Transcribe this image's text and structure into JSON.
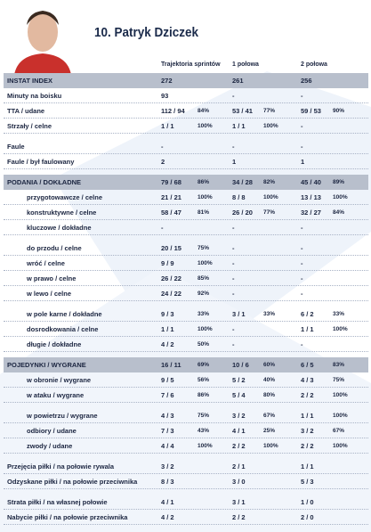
{
  "header": {
    "title": "10. Patryk Dziczek",
    "columns": [
      "Trajektoria sprintów",
      "1 połowa",
      "2 połowa"
    ]
  },
  "groups": [
    {
      "heading": {
        "label": "INSTAT INDEX",
        "cells": [
          [
            "272"
          ],
          [
            "261"
          ],
          [
            "256"
          ]
        ]
      },
      "rows": [
        {
          "label": "Minuty na boisku",
          "cells": [
            [
              "93"
            ],
            [
              "-"
            ],
            [
              "-"
            ]
          ]
        },
        {
          "label": "TTA / udane",
          "cells": [
            [
              "112 / 94",
              "84%"
            ],
            [
              "53 / 41",
              "77%"
            ],
            [
              "59 / 53",
              "90%"
            ]
          ]
        },
        {
          "label": "Strzały / celne",
          "cells": [
            [
              "1 / 1",
              "100%"
            ],
            [
              "1 / 1",
              "100%"
            ],
            [
              "-"
            ]
          ]
        }
      ]
    },
    {
      "rows": [
        {
          "label": "Faule",
          "cells": [
            [
              "-"
            ],
            [
              "-"
            ],
            [
              "-"
            ]
          ]
        },
        {
          "label": "Faule / był faulowany",
          "cells": [
            [
              "2"
            ],
            [
              "1"
            ],
            [
              "1"
            ]
          ]
        }
      ]
    },
    {
      "heading": {
        "label": "PODANIA / DOKŁADNE",
        "cells": [
          [
            "79 / 68",
            "86%"
          ],
          [
            "34 / 28",
            "82%"
          ],
          [
            "45 / 40",
            "89%"
          ]
        ]
      },
      "rows": [
        {
          "label": "przygotowawcze / celne",
          "cells": [
            [
              "21 / 21",
              "100%"
            ],
            [
              "8 / 8",
              "100%"
            ],
            [
              "13 / 13",
              "100%"
            ]
          ]
        },
        {
          "label": "konstruktywne / celne",
          "cells": [
            [
              "58 / 47",
              "81%"
            ],
            [
              "26 / 20",
              "77%"
            ],
            [
              "32 / 27",
              "84%"
            ]
          ]
        },
        {
          "label": "kluczowe / dokładne",
          "cells": [
            [
              "-"
            ],
            [
              "-"
            ],
            [
              "-"
            ]
          ]
        }
      ]
    },
    {
      "rows": [
        {
          "label": "do przodu / celne",
          "cells": [
            [
              "20 / 15",
              "75%"
            ],
            [
              "-"
            ],
            [
              "-"
            ]
          ]
        },
        {
          "label": "wróć / celne",
          "cells": [
            [
              "9 / 9",
              "100%"
            ],
            [
              "-"
            ],
            [
              "-"
            ]
          ]
        },
        {
          "label": "w prawo / celne",
          "cells": [
            [
              "26 / 22",
              "85%"
            ],
            [
              "-"
            ],
            [
              "-"
            ]
          ]
        },
        {
          "label": "w lewo / celne",
          "cells": [
            [
              "24 / 22",
              "92%"
            ],
            [
              "-"
            ],
            [
              "-"
            ]
          ]
        }
      ]
    },
    {
      "rows": [
        {
          "label": "w pole karne / dokładne",
          "cells": [
            [
              "9 / 3",
              "33%"
            ],
            [
              "3 / 1",
              "33%"
            ],
            [
              "6 / 2",
              "33%"
            ]
          ]
        },
        {
          "label": "dosrodkowania / celne",
          "cells": [
            [
              "1 / 1",
              "100%"
            ],
            [
              "-"
            ],
            [
              "1 / 1",
              "100%"
            ]
          ]
        },
        {
          "label": "długie / dokładne",
          "cells": [
            [
              "4 / 2",
              "50%"
            ],
            [
              "-"
            ],
            [
              "-"
            ]
          ]
        }
      ]
    },
    {
      "heading": {
        "label": "POJEDYNKI / WYGRANE",
        "cells": [
          [
            "16 / 11",
            "69%"
          ],
          [
            "10 / 6",
            "60%"
          ],
          [
            "6 / 5",
            "83%"
          ]
        ]
      },
      "rows": [
        {
          "label": "w obronie / wygrane",
          "cells": [
            [
              "9 / 5",
              "56%"
            ],
            [
              "5 / 2",
              "40%"
            ],
            [
              "4 / 3",
              "75%"
            ]
          ]
        },
        {
          "label": "w ataku / wygrane",
          "cells": [
            [
              "7 / 6",
              "86%"
            ],
            [
              "5 / 4",
              "80%"
            ],
            [
              "2 / 2",
              "100%"
            ]
          ]
        }
      ]
    },
    {
      "rows": [
        {
          "label": "w powietrzu / wygrane",
          "cells": [
            [
              "4 / 3",
              "75%"
            ],
            [
              "3 / 2",
              "67%"
            ],
            [
              "1 / 1",
              "100%"
            ]
          ]
        },
        {
          "label": "odbiory / udane",
          "cells": [
            [
              "7 / 3",
              "43%"
            ],
            [
              "4 / 1",
              "25%"
            ],
            [
              "3 / 2",
              "67%"
            ]
          ]
        },
        {
          "label": "zwody / udane",
          "cells": [
            [
              "4 / 4",
              "100%"
            ],
            [
              "2 / 2",
              "100%"
            ],
            [
              "2 / 2",
              "100%"
            ]
          ]
        }
      ]
    },
    {
      "rows": [
        {
          "label": "Przejęcia piłki / na połowie rywala",
          "cells": [
            [
              "3 / 2"
            ],
            [
              "2 / 1"
            ],
            [
              "1 / 1"
            ]
          ]
        },
        {
          "label": "Odzyskane piłki / na połowie przeciwnika",
          "cells": [
            [
              "8 / 3"
            ],
            [
              "3 / 0"
            ],
            [
              "5 / 3"
            ]
          ]
        }
      ]
    },
    {
      "rows": [
        {
          "label": "Strata piłki / na własnej połowie",
          "cells": [
            [
              "4 / 1"
            ],
            [
              "3 / 1"
            ],
            [
              "1 / 0"
            ]
          ]
        },
        {
          "label": "Nabycie piłki / na połowie przeciwnika",
          "cells": [
            [
              "4 / 2"
            ],
            [
              "2 / 2"
            ],
            [
              "2 / 0"
            ]
          ]
        }
      ]
    }
  ]
}
